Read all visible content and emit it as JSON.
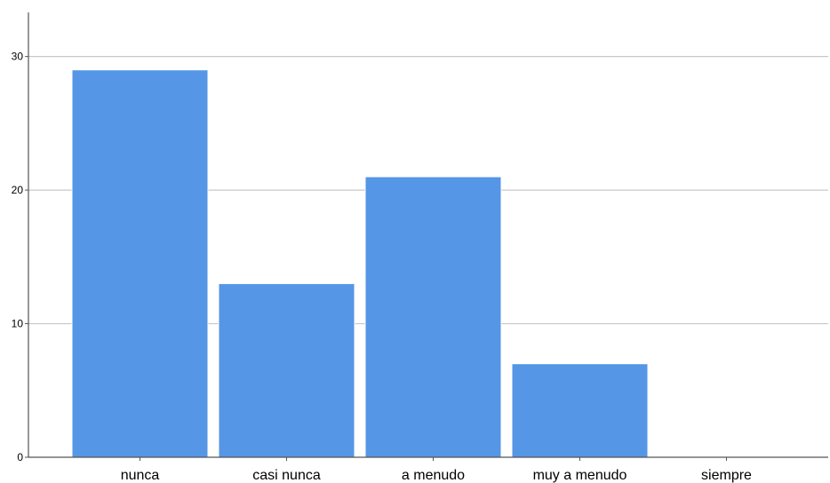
{
  "chart_data": {
    "type": "bar",
    "title": "",
    "xlabel": "",
    "ylabel": "",
    "categories": [
      "nunca",
      "casi nunca",
      "a menudo",
      "muy a menudo",
      "siempre"
    ],
    "values": [
      29,
      13,
      21,
      7,
      0
    ],
    "ylim": [
      0,
      33.3
    ],
    "yticks": [
      "0",
      "10",
      "20",
      "30"
    ],
    "grid": true,
    "legend": "none",
    "bar_color": "#5596E6",
    "grid_color": "#C8C8C8",
    "axis_color": "#555555"
  }
}
